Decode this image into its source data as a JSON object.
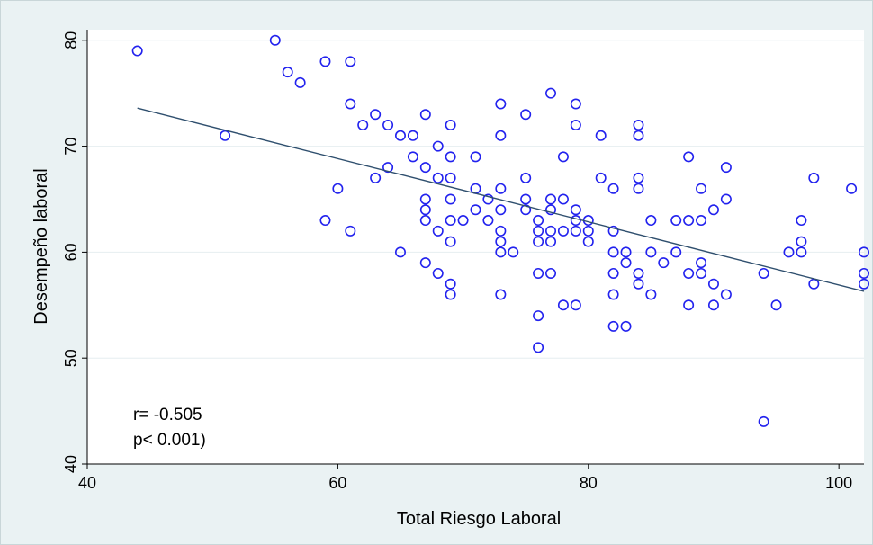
{
  "chart_data": {
    "type": "scatter",
    "xlabel": "Total Riesgo Laboral",
    "ylabel": "Desempeño laboral",
    "xlim": [
      40,
      102
    ],
    "ylim": [
      40,
      81
    ],
    "x_ticks": [
      "40",
      "60",
      "80",
      "100"
    ],
    "y_ticks": [
      "40",
      "50",
      "60",
      "70",
      "80"
    ],
    "x_tick_values": [
      40,
      60,
      80,
      100
    ],
    "y_tick_values": [
      40,
      50,
      60,
      70,
      80
    ],
    "grid": true,
    "marker_color": "#2222ee",
    "line_color": "#2f4f6e",
    "annotations": [
      "r= -0.505",
      "p< 0.001)"
    ],
    "fit_line": {
      "x": [
        44,
        102
      ],
      "y": [
        73.6,
        56.3
      ]
    },
    "points": [
      [
        44,
        79
      ],
      [
        51,
        71
      ],
      [
        55,
        80
      ],
      [
        56,
        77
      ],
      [
        57,
        76
      ],
      [
        59,
        78
      ],
      [
        59,
        63
      ],
      [
        60,
        66
      ],
      [
        61,
        78
      ],
      [
        61,
        74
      ],
      [
        61,
        62
      ],
      [
        62,
        72
      ],
      [
        63,
        73
      ],
      [
        63,
        67
      ],
      [
        64,
        72
      ],
      [
        64,
        68
      ],
      [
        65,
        71
      ],
      [
        65,
        60
      ],
      [
        66,
        71
      ],
      [
        66,
        69
      ],
      [
        67,
        73
      ],
      [
        67,
        68
      ],
      [
        67,
        65
      ],
      [
        67,
        64
      ],
      [
        67,
        63
      ],
      [
        67,
        59
      ],
      [
        68,
        70
      ],
      [
        68,
        67
      ],
      [
        68,
        62
      ],
      [
        68,
        58
      ],
      [
        69,
        72
      ],
      [
        69,
        69
      ],
      [
        69,
        67
      ],
      [
        69,
        65
      ],
      [
        69,
        63
      ],
      [
        69,
        61
      ],
      [
        69,
        57
      ],
      [
        69,
        56
      ],
      [
        70,
        63
      ],
      [
        71,
        69
      ],
      [
        71,
        66
      ],
      [
        71,
        64
      ],
      [
        72,
        65
      ],
      [
        72,
        63
      ],
      [
        73,
        74
      ],
      [
        73,
        71
      ],
      [
        73,
        66
      ],
      [
        73,
        64
      ],
      [
        73,
        62
      ],
      [
        73,
        61
      ],
      [
        73,
        60
      ],
      [
        73,
        56
      ],
      [
        74,
        60
      ],
      [
        75,
        73
      ],
      [
        75,
        67
      ],
      [
        75,
        65
      ],
      [
        75,
        64
      ],
      [
        76,
        63
      ],
      [
        76,
        62
      ],
      [
        76,
        61
      ],
      [
        76,
        58
      ],
      [
        76,
        54
      ],
      [
        76,
        51
      ],
      [
        77,
        75
      ],
      [
        77,
        65
      ],
      [
        77,
        64
      ],
      [
        77,
        62
      ],
      [
        77,
        61
      ],
      [
        77,
        58
      ],
      [
        78,
        69
      ],
      [
        78,
        65
      ],
      [
        78,
        62
      ],
      [
        78,
        55
      ],
      [
        79,
        74
      ],
      [
        79,
        72
      ],
      [
        79,
        64
      ],
      [
        79,
        63
      ],
      [
        79,
        62
      ],
      [
        79,
        55
      ],
      [
        80,
        63
      ],
      [
        80,
        62
      ],
      [
        80,
        61
      ],
      [
        81,
        71
      ],
      [
        81,
        67
      ],
      [
        82,
        66
      ],
      [
        82,
        62
      ],
      [
        82,
        60
      ],
      [
        82,
        58
      ],
      [
        82,
        56
      ],
      [
        82,
        53
      ],
      [
        83,
        60
      ],
      [
        83,
        59
      ],
      [
        83,
        53
      ],
      [
        84,
        72
      ],
      [
        84,
        71
      ],
      [
        84,
        67
      ],
      [
        84,
        66
      ],
      [
        84,
        58
      ],
      [
        84,
        57
      ],
      [
        85,
        63
      ],
      [
        85,
        60
      ],
      [
        85,
        56
      ],
      [
        86,
        59
      ],
      [
        87,
        63
      ],
      [
        87,
        60
      ],
      [
        88,
        69
      ],
      [
        88,
        63
      ],
      [
        88,
        58
      ],
      [
        88,
        55
      ],
      [
        89,
        66
      ],
      [
        89,
        63
      ],
      [
        89,
        59
      ],
      [
        89,
        58
      ],
      [
        90,
        64
      ],
      [
        90,
        57
      ],
      [
        90,
        55
      ],
      [
        91,
        68
      ],
      [
        91,
        65
      ],
      [
        91,
        56
      ],
      [
        94,
        58
      ],
      [
        94,
        44
      ],
      [
        95,
        55
      ],
      [
        96,
        60
      ],
      [
        97,
        63
      ],
      [
        97,
        61
      ],
      [
        97,
        60
      ],
      [
        98,
        67
      ],
      [
        98,
        57
      ],
      [
        101,
        66
      ],
      [
        102,
        60
      ],
      [
        102,
        58
      ],
      [
        102,
        57
      ]
    ]
  }
}
